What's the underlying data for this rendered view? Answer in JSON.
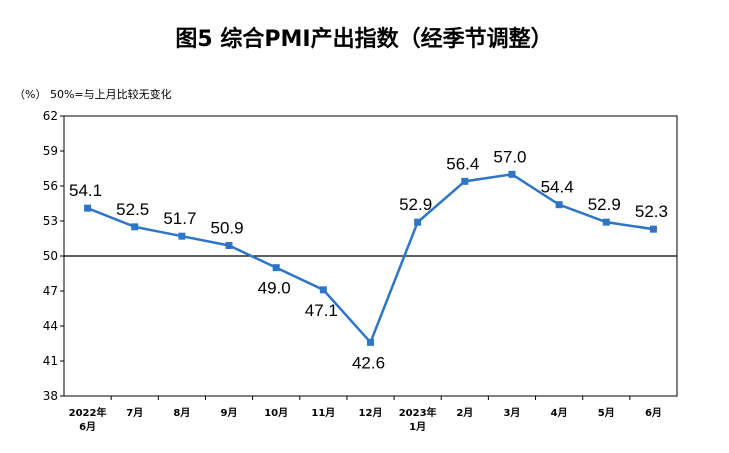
{
  "title": "图5  综合PMI产出指数（经季节调整）",
  "unit_note": "（%）  50%=与上月比较无变化",
  "chart_data": {
    "type": "line",
    "categories": [
      [
        "2022年",
        "6月"
      ],
      [
        "7月"
      ],
      [
        "8月"
      ],
      [
        "9月"
      ],
      [
        "10月"
      ],
      [
        "11月"
      ],
      [
        "12月"
      ],
      [
        "2023年",
        "1月"
      ],
      [
        "2月"
      ],
      [
        "3月"
      ],
      [
        "4月"
      ],
      [
        "5月"
      ],
      [
        "6月"
      ]
    ],
    "values": [
      54.1,
      52.5,
      51.7,
      50.9,
      49.0,
      47.1,
      42.6,
      52.9,
      56.4,
      57.0,
      54.4,
      52.9,
      52.3
    ],
    "data_labels": [
      "54.1",
      "52.5",
      "51.7",
      "50.9",
      "49.0",
      "47.1",
      "42.6",
      "52.9",
      "56.4",
      "57.0",
      "54.4",
      "52.9",
      "52.3"
    ],
    "label_position": [
      "above",
      "above",
      "above",
      "above",
      "below",
      "below",
      "below",
      "above",
      "above",
      "above",
      "above",
      "above",
      "above"
    ],
    "ylim": [
      38,
      62
    ],
    "yticks": [
      38,
      41,
      44,
      47,
      50,
      53,
      56,
      59,
      62
    ],
    "reference_line": 50,
    "grid": false,
    "colors": {
      "line": "#2e75c6",
      "marker": "#2e75c6",
      "axis": "#000000",
      "reference": "#000000"
    }
  }
}
